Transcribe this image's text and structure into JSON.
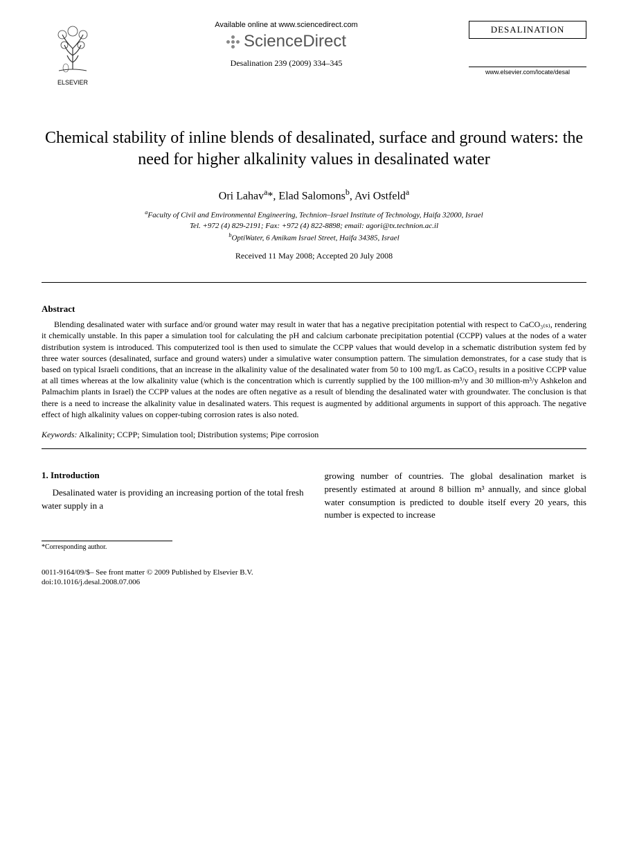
{
  "header": {
    "elsevier_label": "ELSEVIER",
    "available_online": "Available online at www.sciencedirect.com",
    "sciencedirect": "ScienceDirect",
    "citation": "Desalination 239 (2009) 334–345",
    "journal_name": "DESALINATION",
    "journal_url": "www.elsevier.com/locate/desal"
  },
  "title": "Chemical stability of inline blends of desalinated, surface and ground waters: the need for higher alkalinity values in desalinated water",
  "authors_html": "Ori Lahav<sup>a</sup>*, Elad Salomons<sup>b</sup>, Avi Ostfeld<sup>a</sup>",
  "affiliations": {
    "a": "Faculty of Civil and Environmental Engineering, Technion–Israel Institute of Technology, Haifa 32000, Israel",
    "contact": "Tel. +972 (4) 829-2191; Fax: +972 (4) 822-8898; email: agori@tx.technion.ac.il",
    "b": "OptiWater, 6 Amikam Israel Street, Haifa 34385, Israel"
  },
  "dates": "Received 11 May 2008; Accepted 20 July 2008",
  "abstract": {
    "heading": "Abstract",
    "body": "Blending desalinated water with surface and/or ground water may result in water that has a negative precipitation potential with respect to CaCO₃₍ₛ₎, rendering it chemically unstable. In this paper a simulation tool for calculating the pH and calcium carbonate precipitation potential (CCPP) values at the nodes of a water distribution system is introduced. This computerized tool is then used to simulate the CCPP values that would develop in a schematic distribution system fed by three water sources (desalinated, surface and ground waters) under a simulative water consumption pattern. The simulation demonstrates, for a case study that is based on typical Israeli conditions, that an increase in the alkalinity value of the desalinated water from 50 to 100 mg/L as CaCO₃ results in a positive CCPP value at all times whereas at the low alkalinity value (which is the concentration which is currently supplied by the 100 million-m³/y and 30 million-m³/y Ashkelon and Palmachim plants in Israel) the CCPP values at the nodes are often negative as a result of blending the desalinated water with groundwater. The conclusion is that there is a need to increase the alkalinity value in desalinated waters. This request is augmented by additional arguments in support of this approach. The negative effect of high alkalinity values on copper-tubing corrosion rates is also noted."
  },
  "keywords": {
    "label": "Keywords:",
    "list": "Alkalinity; CCPP; Simulation tool; Distribution systems; Pipe corrosion"
  },
  "intro": {
    "heading": "1. Introduction",
    "col1": "Desalinated water is providing an increasing portion of the total fresh water supply in a",
    "col2": "growing number of countries. The global desalination market is presently estimated at around 8 billion m³ annually, and since global water consumption is predicted to double itself every 20 years, this number is expected to increase"
  },
  "corresponding": "*Corresponding author.",
  "footer": {
    "line1": "0011-9164/09/$– See front matter © 2009 Published by Elsevier B.V.",
    "line2": "doi:10.1016/j.desal.2008.07.006"
  },
  "colors": {
    "text": "#000000",
    "background": "#ffffff",
    "sd_gray": "#666666",
    "rule": "#000000"
  },
  "typography": {
    "body_font": "Georgia, Times New Roman, serif",
    "title_size_pt": 18,
    "author_size_pt": 13,
    "abstract_size_pt": 9,
    "body_size_pt": 10
  }
}
